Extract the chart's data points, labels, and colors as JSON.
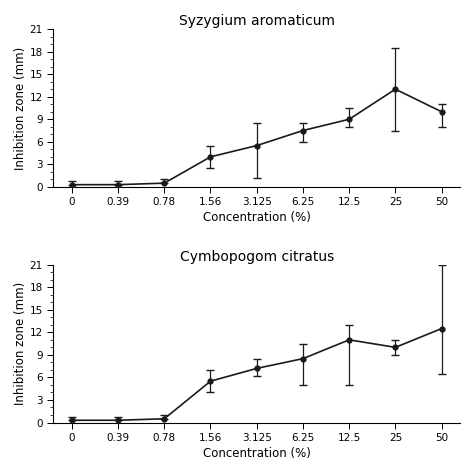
{
  "chart1": {
    "title": "Syzygium aromaticum",
    "x_labels": [
      "0",
      "0.39",
      "0.78",
      "1.56",
      "3.125",
      "6.25",
      "12.5",
      "25",
      "50"
    ],
    "y_vals": [
      0.3,
      0.3,
      0.5,
      4.0,
      5.5,
      7.5,
      9.0,
      13.0,
      10.0
    ],
    "y_err_upper": [
      0.5,
      0.5,
      0.5,
      1.5,
      3.0,
      1.0,
      1.5,
      5.5,
      1.0
    ],
    "y_err_lower": [
      0.0,
      0.0,
      0.0,
      1.5,
      4.3,
      1.5,
      1.0,
      5.5,
      2.0
    ],
    "ylabel": "Inhibition zone (mm)",
    "xlabel": "Concentration (%)",
    "yticks": [
      0,
      3,
      6,
      9,
      12,
      15,
      18,
      21
    ],
    "ylim": [
      0,
      21
    ],
    "ymax_label": "21"
  },
  "chart2": {
    "title": "Cymbopogom citratus",
    "x_labels": [
      "0",
      "0.39",
      "0.78",
      "1.56",
      "3.125",
      "6.25",
      "12.5",
      "25",
      "50"
    ],
    "y_vals": [
      0.3,
      0.3,
      0.5,
      5.5,
      7.2,
      8.5,
      11.0,
      10.0,
      12.5
    ],
    "y_err_upper": [
      0.5,
      0.5,
      0.5,
      1.5,
      1.3,
      2.0,
      2.0,
      1.0,
      8.5
    ],
    "y_err_lower": [
      0.0,
      0.0,
      0.0,
      1.5,
      1.0,
      3.5,
      6.0,
      1.0,
      6.0
    ],
    "ylabel": "Inhibition zone (mm)",
    "xlabel": "Concentration (%)",
    "yticks": [
      0,
      3,
      6,
      9,
      12,
      15,
      18,
      21
    ],
    "ylim": [
      0,
      21
    ],
    "ymax_label": "21"
  },
  "line_color": "#1a1a1a",
  "marker_color": "#1a1a1a",
  "marker_size": 3.5,
  "bg_color": "#ffffff",
  "font_size_title": 10,
  "font_size_label": 8.5,
  "font_size_tick": 7.5,
  "capsize": 3,
  "linewidth": 1.2
}
